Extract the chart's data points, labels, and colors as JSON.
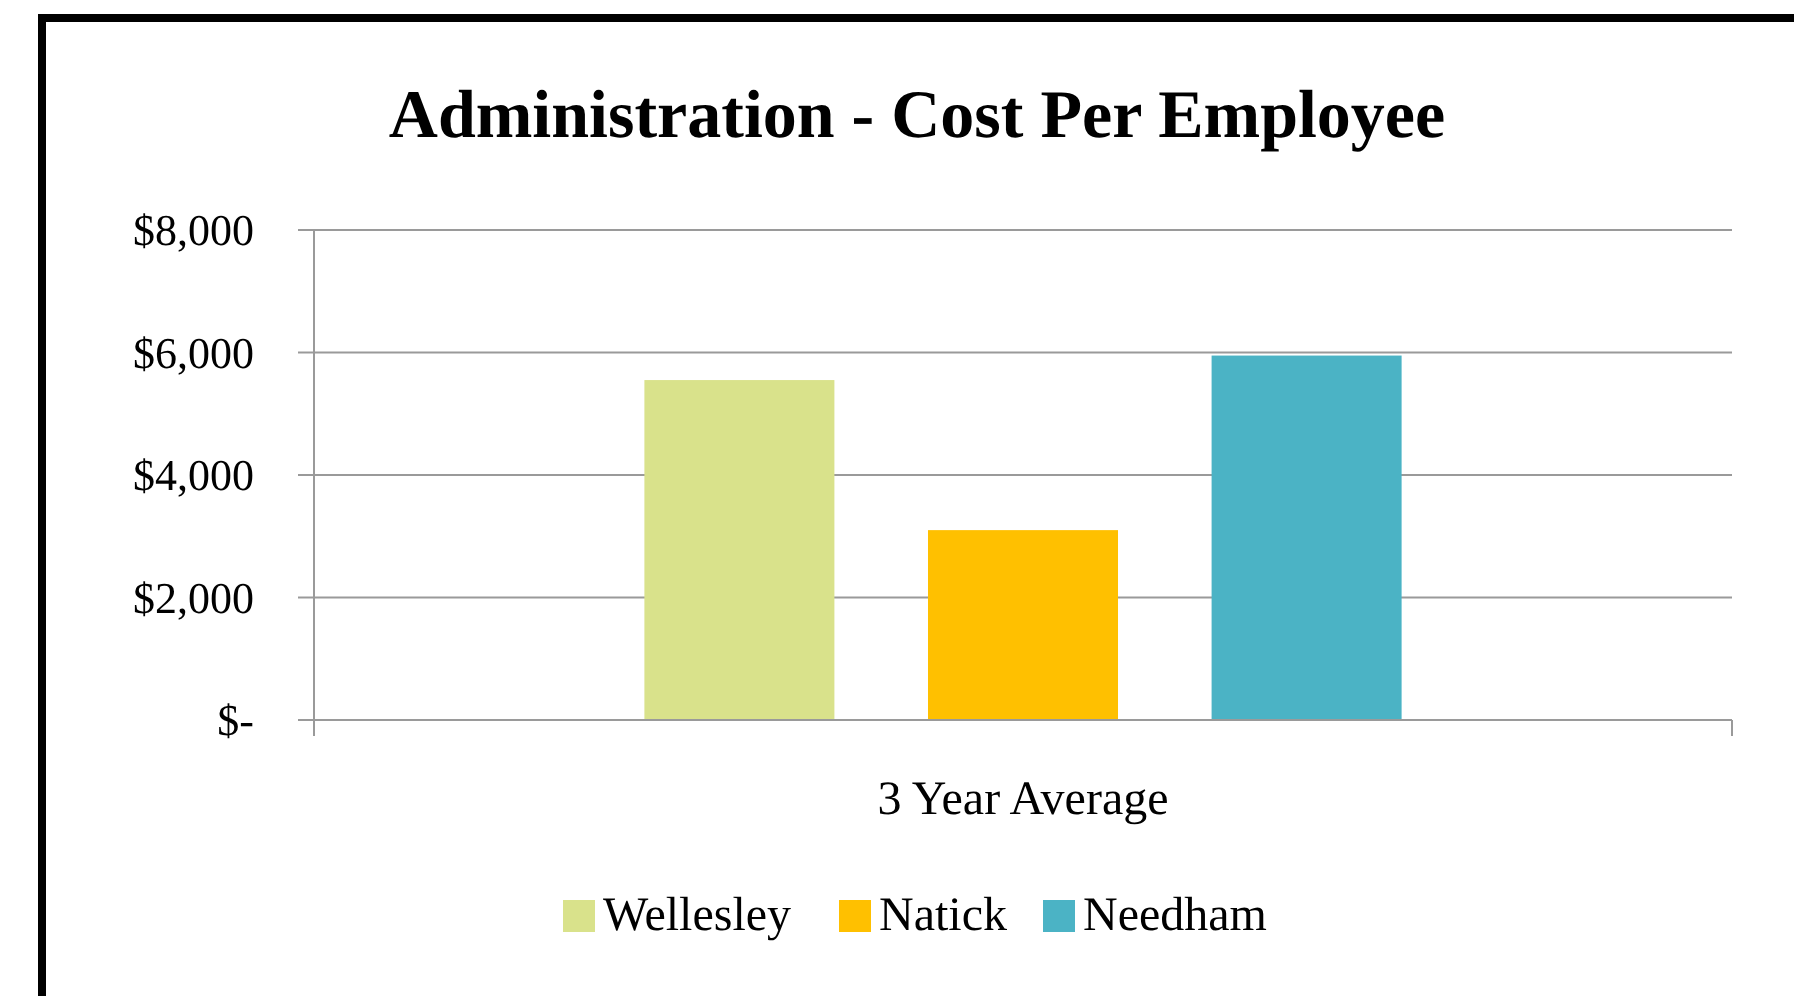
{
  "chart_data": {
    "type": "bar",
    "title": "Administration - Cost Per Employee",
    "categories": [
      "3 Year Average"
    ],
    "series": [
      {
        "name": "Wellesley",
        "color": "#d9e28b",
        "values": [
          5550
        ]
      },
      {
        "name": "Natick",
        "color": "#ffc000",
        "values": [
          3100
        ]
      },
      {
        "name": "Needham",
        "color": "#4bb3c5",
        "values": [
          5950
        ]
      }
    ],
    "ylim": [
      0,
      8000
    ],
    "yticks": [
      {
        "value": 0,
        "label": "$-"
      },
      {
        "value": 2000,
        "label": "$2,000"
      },
      {
        "value": 4000,
        "label": "$4,000"
      },
      {
        "value": 6000,
        "label": "$6,000"
      },
      {
        "value": 8000,
        "label": "$8,000"
      }
    ],
    "grid": "y",
    "legend": "bottom"
  }
}
